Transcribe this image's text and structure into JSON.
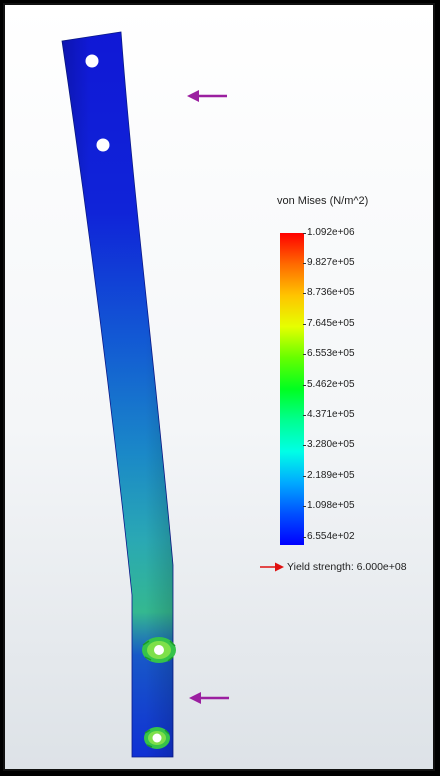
{
  "legend": {
    "title": "von Mises (N/m^2)",
    "ticks": [
      "1.092e+06",
      "9.827e+05",
      "8.736e+05",
      "7.645e+05",
      "6.553e+05",
      "5.462e+05",
      "4.371e+05",
      "3.280e+05",
      "2.189e+05",
      "1.098e+05",
      "6.554e+02"
    ],
    "yield_label": "Yield strength: 6.000e+08"
  },
  "colors": {
    "beam_blue": "#1020d8",
    "load_arrow": "#9b1fa0",
    "yield_arrow": "#e01010"
  }
}
